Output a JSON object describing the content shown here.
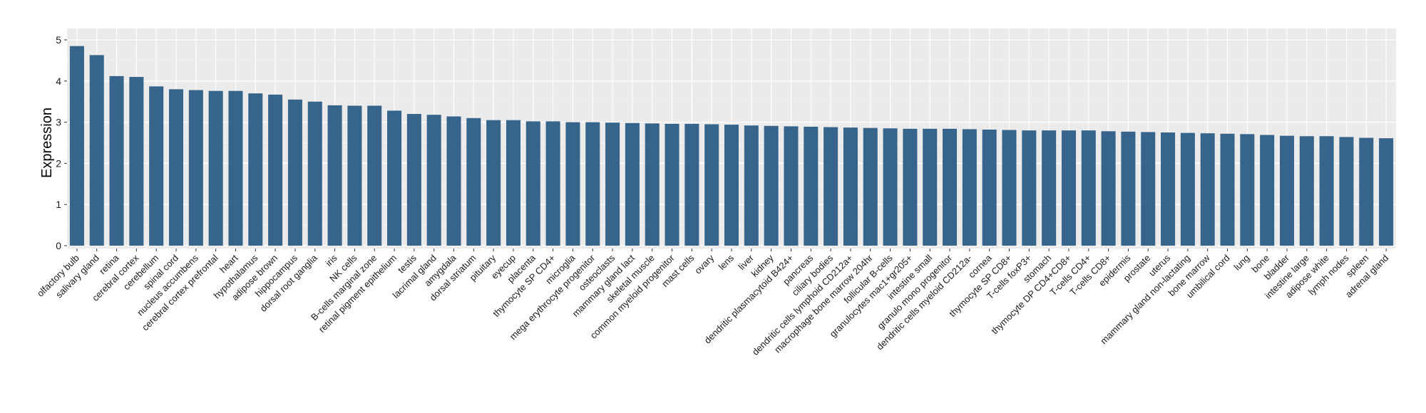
{
  "chart_data": {
    "type": "bar",
    "title": "",
    "xlabel": "",
    "ylabel": "Expression",
    "ylim": [
      0,
      5
    ],
    "yticks": [
      0,
      1,
      2,
      3,
      4,
      5
    ],
    "grid": true,
    "bar_color": "#36648b",
    "panel_color": "#ebebeb",
    "categories": [
      "olfactory bulb",
      "salivary gland",
      "retina",
      "cerebral cortex",
      "cerebellum",
      "spinal cord",
      "nucleus accumbens",
      "cerebral cortex prefrontal",
      "heart",
      "hypothalamus",
      "adipose brown",
      "hippocampus",
      "dorsal root ganglia",
      "iris",
      "NK cells",
      "B-cells marginal zone",
      "retinal pigment epithelium",
      "testis",
      "lacrimal gland",
      "amygdala",
      "dorsal striatum",
      "pituitary",
      "eyecup",
      "placenta",
      "thymocyte SP CD4+",
      "microglia",
      "mega erythrocyte progenitor",
      "osteoclasts",
      "mammary gland lact",
      "skeletal muscle",
      "common myeloid progenitor",
      "mast cells",
      "ovary",
      "lens",
      "liver",
      "kidney",
      "dendritic plasmacytoid B424+",
      "pancreas",
      "ciliary bodies",
      "dendritic cells lymphoid CD212a+",
      "macrophage bone marrow 204hr",
      "follicular B-cells",
      "granulocytes mac1+gr205+",
      "intestine small",
      "granulo mono progenitor",
      "dendritic cells myeloid CD212a-",
      "cornea",
      "thymocyte SP CD8+",
      "T-cells foxP3+",
      "stomach",
      "thymocyte DP CD4+CD8+",
      "T-cells CD4+",
      "T-cells CD8+",
      "epidermis",
      "prostate",
      "uterus",
      "mammary gland non-lactating",
      "bone marrow",
      "umbilical cord",
      "lung",
      "bone",
      "bladder",
      "intestine large",
      "adipose white",
      "lymph nodes",
      "spleen",
      "adrenal gland"
    ],
    "values": [
      4.85,
      4.63,
      4.12,
      4.1,
      3.87,
      3.8,
      3.78,
      3.76,
      3.76,
      3.7,
      3.67,
      3.55,
      3.5,
      3.41,
      3.4,
      3.4,
      3.28,
      3.2,
      3.18,
      3.14,
      3.1,
      3.05,
      3.05,
      3.02,
      3.02,
      3.0,
      3.0,
      2.99,
      2.98,
      2.97,
      2.96,
      2.96,
      2.95,
      2.94,
      2.92,
      2.91,
      2.9,
      2.89,
      2.88,
      2.87,
      2.86,
      2.85,
      2.84,
      2.84,
      2.84,
      2.83,
      2.82,
      2.81,
      2.8,
      2.8,
      2.8,
      2.8,
      2.78,
      2.77,
      2.76,
      2.75,
      2.74,
      2.73,
      2.72,
      2.71,
      2.69,
      2.67,
      2.66,
      2.66,
      2.64,
      2.62,
      2.61
    ]
  }
}
